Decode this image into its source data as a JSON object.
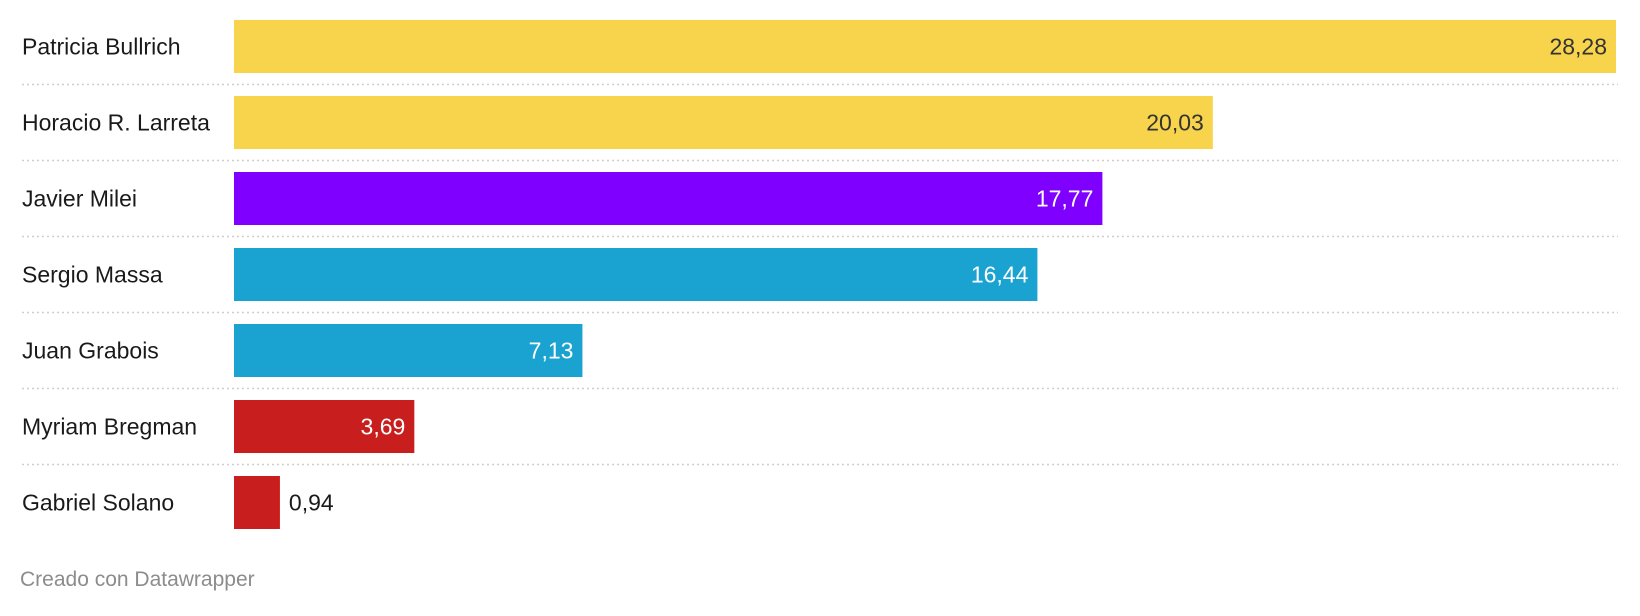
{
  "chart_data": {
    "type": "bar",
    "orientation": "horizontal",
    "categories": [
      "Patricia Bullrich",
      "Horacio R. Larreta",
      "Javier Milei",
      "Sergio Massa",
      "Juan Grabois",
      "Myriam Bregman",
      "Gabriel Solano"
    ],
    "values": [
      28.28,
      20.03,
      17.77,
      16.44,
      7.13,
      3.69,
      0.94
    ],
    "value_labels": [
      "28,28",
      "20,03",
      "17,77",
      "16,44",
      "7,13",
      "3,69",
      "0,94"
    ],
    "bar_colors": [
      "#f8d44c",
      "#f8d44c",
      "#8000ff",
      "#1aa3d1",
      "#1aa3d1",
      "#c81e1e",
      "#c81e1e"
    ],
    "value_label_colors": [
      "#333333",
      "#333333",
      "#ffffff",
      "#ffffff",
      "#ffffff",
      "#ffffff",
      "#1a1a1a"
    ],
    "xlim": [
      0,
      28.28
    ],
    "grid": false,
    "row_separators": true
  },
  "footer": {
    "credit": "Creado con Datawrapper"
  }
}
